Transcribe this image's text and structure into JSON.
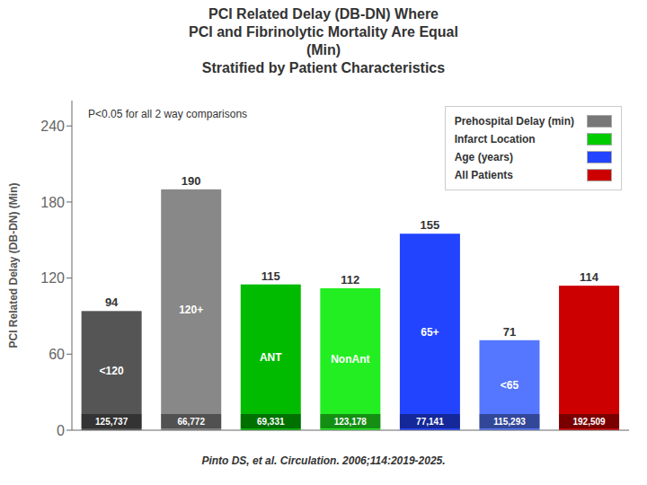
{
  "chart_data": {
    "type": "bar",
    "title": "PCI Related Delay (DB-DN) Where\nPCI and Fibrinolytic Mortality Are Equal\n(Min)\nStratified by Patient Characteristics",
    "ylabel": "PCI Related Delay (DB-DN) (Min)",
    "categories": [
      "<120",
      "120+",
      "ANT",
      "NonAnt",
      "65+",
      "<65",
      null
    ],
    "values": [
      94,
      190,
      115,
      112,
      155,
      71,
      114
    ],
    "colors": [
      "#555555",
      "#888888",
      "#00bb00",
      "#22ee22",
      "#2244ff",
      "#5577ff",
      "#cc0000"
    ],
    "n_labels": [
      "125,737",
      "66,772",
      "69,331",
      "123,178",
      "77,141",
      "115,293",
      "192,509"
    ],
    "ylim": [
      0,
      260
    ],
    "yticks": [
      0,
      60,
      120,
      180,
      240
    ],
    "grid": false,
    "data_labels": true,
    "tick_labels": "y",
    "legend": "upper right",
    "legend_items": [
      {
        "name": "Prehospital Delay (min)",
        "color": "#777777"
      },
      {
        "name": "Infarct Location",
        "color": "#00cc00"
      },
      {
        "name": "Age (years)",
        "color": "#2244ff"
      },
      {
        "name": "All Patients",
        "color": "#cc0000"
      }
    ],
    "annotations": [
      "P<0.05 for all 2 way comparisons"
    ],
    "footer": "Pinto DS, et al. Circulation. 2006;114:2019-2025."
  }
}
